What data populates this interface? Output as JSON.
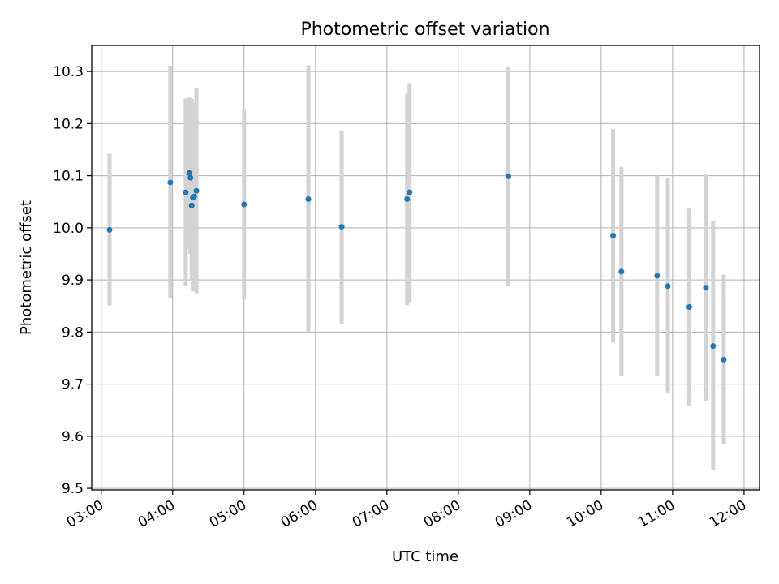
{
  "chart_data": {
    "type": "scatter",
    "title": "Photometric offset variation",
    "xlabel": "UTC time",
    "ylabel": "Photometric offset",
    "x_is_time": true,
    "xlim": [
      "02:52",
      "12:13"
    ],
    "ylim": [
      9.497,
      10.35
    ],
    "x_ticks": [
      "03:00",
      "04:00",
      "05:00",
      "06:00",
      "07:00",
      "08:00",
      "09:00",
      "10:00",
      "11:00",
      "12:00"
    ],
    "y_ticks": [
      9.5,
      9.6,
      9.7,
      9.8,
      9.9,
      10.0,
      10.1,
      10.2,
      10.3
    ],
    "grid": true,
    "marker_color": "#1f77b4",
    "errorbar_color": "#d3d3d3",
    "points": [
      {
        "x": "03:07",
        "y": 9.996,
        "yerr_low": 9.851,
        "yerr_high": 10.142
      },
      {
        "x": "03:58",
        "y": 10.087,
        "yerr_low": 9.865,
        "yerr_high": 10.311
      },
      {
        "x": "04:11",
        "y": 10.068,
        "yerr_low": 9.888,
        "yerr_high": 10.248
      },
      {
        "x": "04:14",
        "y": 10.105,
        "yerr_low": 9.96,
        "yerr_high": 10.25
      },
      {
        "x": "04:15",
        "y": 10.096,
        "yerr_low": 9.95,
        "yerr_high": 10.245
      },
      {
        "x": "04:16",
        "y": 10.043,
        "yerr_low": 9.898,
        "yerr_high": 10.248
      },
      {
        "x": "04:17",
        "y": 10.058,
        "yerr_low": 9.878,
        "yerr_high": 10.24
      },
      {
        "x": "04:18",
        "y": 10.06,
        "yerr_low": 9.88,
        "yerr_high": 10.24
      },
      {
        "x": "04:20",
        "y": 10.071,
        "yerr_low": 9.874,
        "yerr_high": 10.268
      },
      {
        "x": "05:00",
        "y": 10.045,
        "yerr_low": 9.862,
        "yerr_high": 10.228
      },
      {
        "x": "05:54",
        "y": 10.055,
        "yerr_low": 9.8,
        "yerr_high": 10.312
      },
      {
        "x": "06:22",
        "y": 10.002,
        "yerr_low": 9.816,
        "yerr_high": 10.187
      },
      {
        "x": "07:17",
        "y": 10.055,
        "yerr_low": 9.852,
        "yerr_high": 10.258
      },
      {
        "x": "07:19",
        "y": 10.068,
        "yerr_low": 9.857,
        "yerr_high": 10.278
      },
      {
        "x": "08:42",
        "y": 10.099,
        "yerr_low": 9.888,
        "yerr_high": 10.31
      },
      {
        "x": "10:10",
        "y": 9.985,
        "yerr_low": 9.78,
        "yerr_high": 10.19
      },
      {
        "x": "10:17",
        "y": 9.916,
        "yerr_low": 9.716,
        "yerr_high": 10.117
      },
      {
        "x": "10:47",
        "y": 9.908,
        "yerr_low": 9.715,
        "yerr_high": 10.1
      },
      {
        "x": "10:56",
        "y": 9.888,
        "yerr_low": 9.684,
        "yerr_high": 10.096
      },
      {
        "x": "11:14",
        "y": 9.848,
        "yerr_low": 9.659,
        "yerr_high": 10.037
      },
      {
        "x": "11:28",
        "y": 9.885,
        "yerr_low": 9.668,
        "yerr_high": 10.104
      },
      {
        "x": "11:34",
        "y": 9.773,
        "yerr_low": 9.535,
        "yerr_high": 10.013
      },
      {
        "x": "11:43",
        "y": 9.747,
        "yerr_low": 9.585,
        "yerr_high": 9.91
      }
    ]
  }
}
